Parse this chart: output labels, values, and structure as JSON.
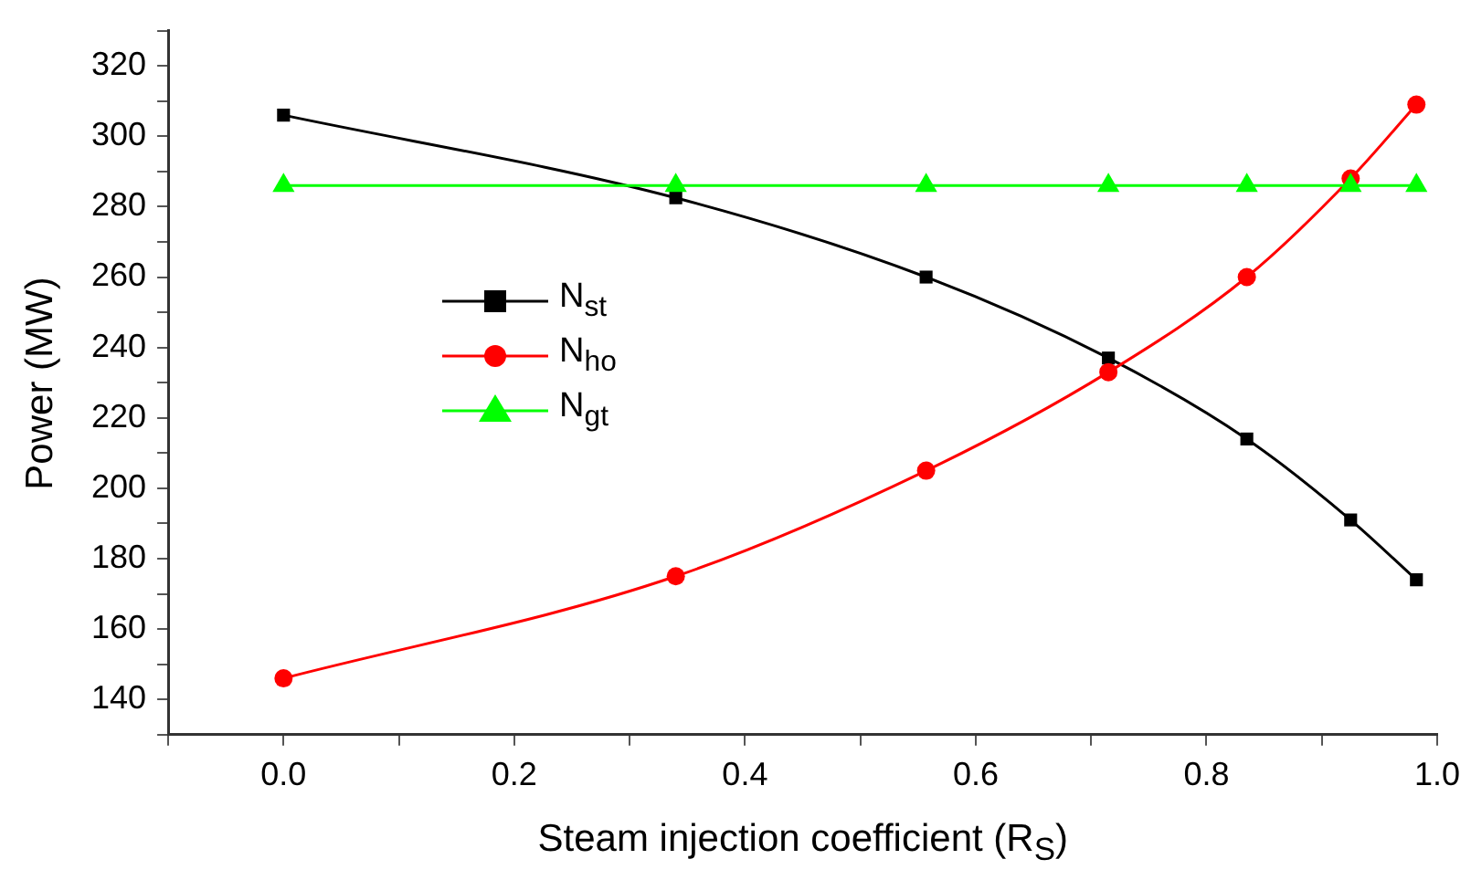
{
  "chart_data": {
    "type": "line",
    "xlabel": "Steam injection coefficient (R$_{S}$)",
    "ylabel": "Power (MW)",
    "xlim": [
      -0.1,
      1.0
    ],
    "xticks": [
      {
        "value": -0.1,
        "label": null
      },
      {
        "value": 0,
        "label": "0.0"
      },
      {
        "value": 0.1,
        "label": null
      },
      0.2,
      {
        "value": 0.3,
        "label": null
      },
      0.4,
      {
        "value": 0.5,
        "label": null
      },
      0.6,
      {
        "value": 0.7,
        "label": null
      },
      0.8,
      {
        "value": 0.9,
        "label": null
      },
      {
        "value": 1,
        "label": "1.0"
      }
    ],
    "ylim": [
      130,
      330
    ],
    "yticks": [
      {
        "value": 130,
        "label": null
      },
      140,
      {
        "value": 150,
        "label": null
      },
      160,
      {
        "value": 170,
        "label": null
      },
      180,
      {
        "value": 190,
        "label": null
      },
      200,
      {
        "value": 210,
        "label": null
      },
      220,
      {
        "value": 230,
        "label": null
      },
      240,
      {
        "value": 250,
        "label": null
      },
      260,
      {
        "value": 270,
        "label": null
      },
      280,
      {
        "value": 290,
        "label": null
      },
      300,
      {
        "value": 310,
        "label": null
      },
      320,
      {
        "value": 330,
        "label": null
      }
    ],
    "x": [
      0,
      0.34,
      0.557,
      0.715,
      0.835,
      0.925,
      0.982
    ],
    "series": [
      {
        "name": "N$_{st}$",
        "color": "#000000",
        "marker": "square",
        "values": [
          306,
          282.5,
          260,
          237,
          214,
          191,
          174
        ]
      },
      {
        "name": "N$_{ho}$",
        "color": "#ff0000",
        "marker": "circle",
        "values": [
          146,
          175,
          205,
          233,
          260,
          288,
          309
        ]
      },
      {
        "name": "N$_{gt}$",
        "color": "#00ff00",
        "marker": "triangle",
        "values": [
          286,
          286,
          286,
          286,
          286,
          286,
          286
        ]
      }
    ],
    "grid": false,
    "legend": "left",
    "line_style": "solid"
  }
}
